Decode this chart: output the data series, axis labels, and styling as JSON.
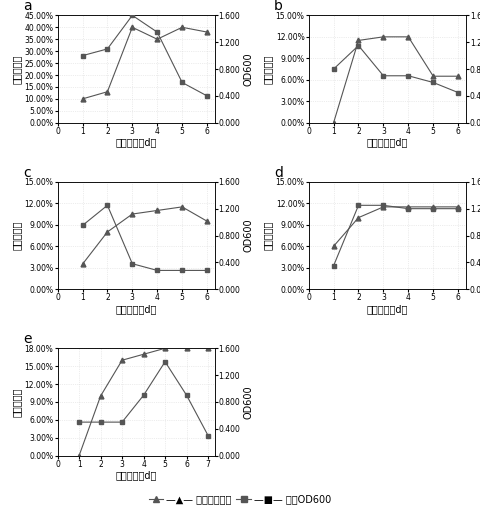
{
  "panel_a": {
    "label": "a",
    "x": [
      1,
      2,
      3,
      4,
      5,
      6
    ],
    "metal_removal": [
      0.1,
      0.13,
      0.4,
      0.35,
      0.4,
      0.38
    ],
    "od600": [
      1.0,
      1.1,
      1.6,
      1.35,
      0.6,
      0.4
    ],
    "yleft_ticks": [
      0.0,
      0.05,
      0.1,
      0.15,
      0.2,
      0.25,
      0.3,
      0.35,
      0.4,
      0.45
    ],
    "yleft_labels": [
      "0.00%",
      "5.00%",
      "10.00%",
      "15.00%",
      "20.00%",
      "25.00%",
      "30.00%",
      "35.00%",
      "40.00%",
      "45.00%"
    ],
    "yright_ticks": [
      0.0,
      0.4,
      0.8,
      1.2,
      1.6
    ],
    "yright_labels": [
      "0.000",
      "0.400",
      "0.800",
      "1.200",
      "1.600"
    ],
    "yleft_max": 0.45,
    "yright_max": 1.6
  },
  "panel_b": {
    "label": "b",
    "x": [
      1,
      2,
      3,
      4,
      5,
      6
    ],
    "metal_removal": [
      0.0,
      0.115,
      0.12,
      0.12,
      0.065,
      0.065
    ],
    "od600": [
      0.8,
      1.15,
      0.7,
      0.7,
      0.6,
      0.45
    ],
    "yleft_ticks": [
      0.0,
      0.03,
      0.06,
      0.09,
      0.12,
      0.15
    ],
    "yleft_labels": [
      "0.00%",
      "3.00%",
      "6.00%",
      "9.00%",
      "12.00%",
      "15.00%"
    ],
    "yright_ticks": [
      0.0,
      0.4,
      0.8,
      1.2,
      1.6
    ],
    "yright_labels": [
      "0.000",
      "0.400",
      "0.800",
      "1.200",
      "1.600"
    ],
    "yleft_max": 0.15,
    "yright_max": 1.6
  },
  "panel_c": {
    "label": "c",
    "x": [
      1,
      2,
      3,
      4,
      5,
      6
    ],
    "metal_removal": [
      0.035,
      0.08,
      0.105,
      0.11,
      0.115,
      0.095
    ],
    "od600": [
      0.95,
      1.25,
      0.38,
      0.28,
      0.28,
      0.28
    ],
    "yleft_ticks": [
      0.0,
      0.03,
      0.06,
      0.09,
      0.12,
      0.15
    ],
    "yleft_labels": [
      "0.00%",
      "3.00%",
      "6.00%",
      "9.00%",
      "12.00%",
      "15.00%"
    ],
    "yright_ticks": [
      0.0,
      0.4,
      0.8,
      1.2,
      1.6
    ],
    "yright_labels": [
      "0.000",
      "0.400",
      "0.800",
      "1.200",
      "1.600"
    ],
    "yleft_max": 0.15,
    "yright_max": 1.6
  },
  "panel_d": {
    "label": "d",
    "x": [
      1,
      2,
      3,
      4,
      5,
      6
    ],
    "metal_removal": [
      0.06,
      0.1,
      0.115,
      0.115,
      0.115,
      0.115
    ],
    "od600": [
      0.35,
      1.25,
      1.25,
      1.2,
      1.2,
      1.2
    ],
    "yleft_ticks": [
      0.0,
      0.03,
      0.06,
      0.09,
      0.12,
      0.15
    ],
    "yleft_labels": [
      "0.00%",
      "3.00%",
      "6.00%",
      "9.00%",
      "12.00%",
      "15.00%"
    ],
    "yright_ticks": [
      0.0,
      0.4,
      0.8,
      1.2,
      1.6
    ],
    "yright_labels": [
      "0.000",
      "0.400",
      "0.800",
      "1.200",
      "1.600"
    ],
    "yleft_max": 0.15,
    "yright_max": 1.6
  },
  "panel_e": {
    "label": "e",
    "x": [
      1,
      2,
      3,
      4,
      5,
      6,
      7
    ],
    "metal_removal": [
      0.0,
      0.1,
      0.16,
      0.17,
      0.18,
      0.18,
      0.18
    ],
    "od600": [
      0.5,
      0.5,
      0.5,
      0.9,
      1.4,
      0.9,
      0.3
    ],
    "yleft_ticks": [
      0.0,
      0.03,
      0.06,
      0.09,
      0.12,
      0.15,
      0.18
    ],
    "yleft_labels": [
      "0.00%",
      "3.00%",
      "6.00%",
      "9.00%",
      "12.00%",
      "15.00%",
      "18.00%"
    ],
    "yright_ticks": [
      0.0,
      0.4,
      0.8,
      1.2,
      1.6
    ],
    "yright_labels": [
      "0.000",
      "0.400",
      "0.800",
      "1.200",
      "1.600"
    ],
    "yleft_max": 0.18,
    "yright_max": 1.6
  },
  "xlabel": "生长时间（d）",
  "ylabel_left": "金属去除率",
  "ylabel_right": "OD600",
  "legend_metal": "金属去除率；",
  "legend_od": "菌液OD600",
  "line_color": "#555555",
  "fontsize": 7
}
